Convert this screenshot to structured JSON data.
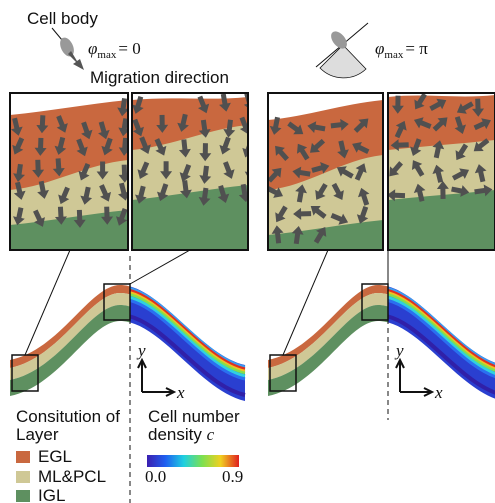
{
  "left": {
    "cell_body": "Cell body",
    "phi": "φ",
    "phi_sub": "max",
    "phi_value": "= 0",
    "migration": "Migration direction",
    "axis_y": "y",
    "axis_x": "x"
  },
  "right": {
    "phi": "φ",
    "phi_sub": "max",
    "phi_value": "= π",
    "axis_y": "y",
    "axis_x": "x"
  },
  "legend": {
    "title_lines": [
      "Consitution of",
      "Layer"
    ],
    "items": [
      "EGL",
      "ML&PCL",
      "IGL"
    ]
  },
  "colorbar": {
    "title_lines": [
      "Cell number",
      "density"
    ],
    "variable": "c",
    "min_label": "0.0",
    "max_label": "0.9"
  }
}
